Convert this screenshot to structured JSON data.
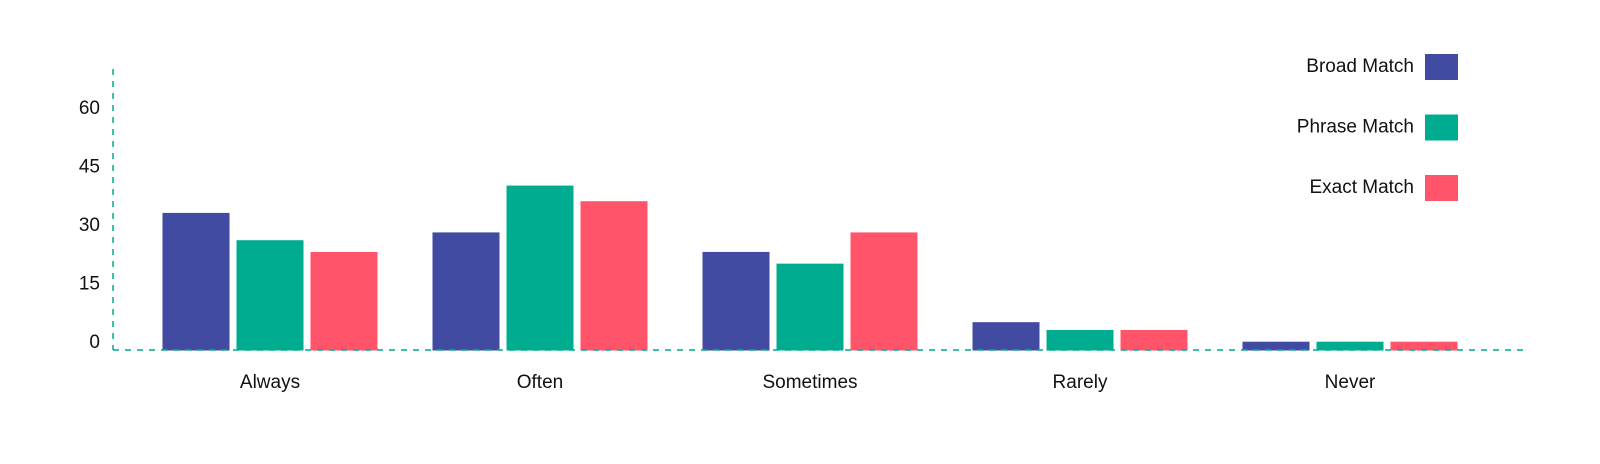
{
  "chart_data": {
    "type": "bar",
    "categories": [
      "Always",
      "Often",
      "Sometimes",
      "Rarely",
      "Never"
    ],
    "series": [
      {
        "name": "Broad Match",
        "color": "#414ba1",
        "values": [
          35,
          30,
          25,
          7,
          2
        ]
      },
      {
        "name": "Phrase Match",
        "color": "#00ac8f",
        "values": [
          28,
          42,
          22,
          5,
          2
        ]
      },
      {
        "name": "Exact Match",
        "color": "#ff5469",
        "values": [
          25,
          38,
          30,
          5,
          2
        ]
      }
    ],
    "ylim": [
      0,
      72
    ],
    "yticks": [
      0,
      15,
      30,
      45,
      60
    ],
    "grid": false,
    "legend": "top-right",
    "axis_color": "#00ac8f"
  }
}
